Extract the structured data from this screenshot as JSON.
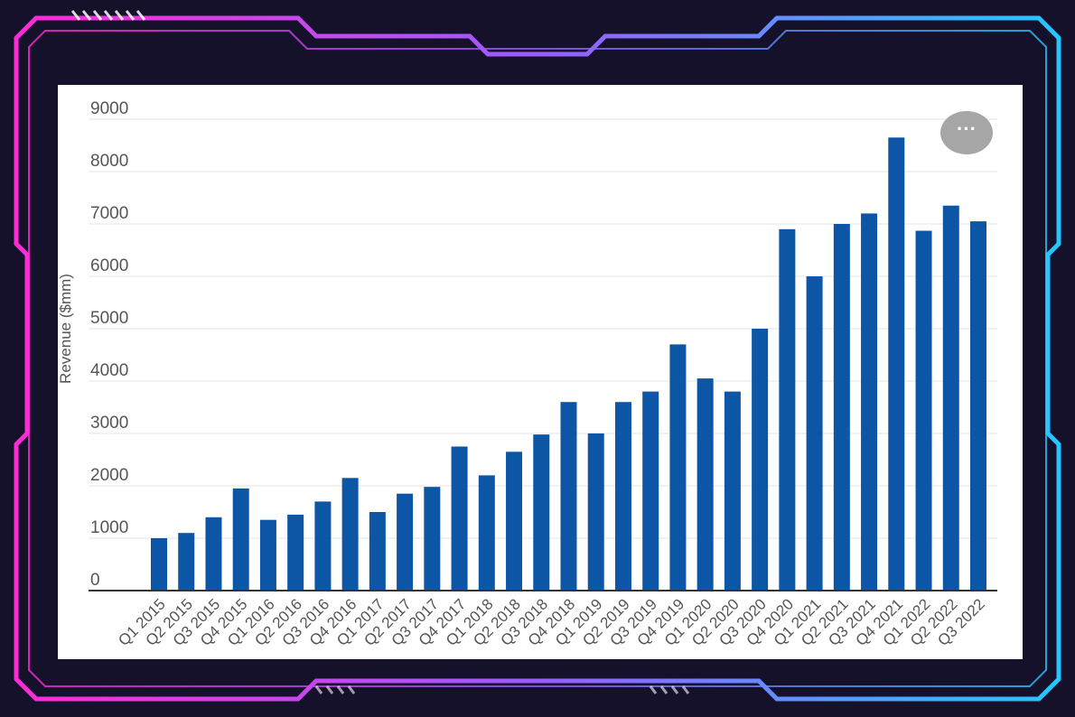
{
  "colors": {
    "bar": "#0d56a6",
    "frame_left": "#ff2bd6",
    "frame_right": "#25c6ff",
    "background": "#15112b",
    "panel": "#ffffff",
    "menu_button": "#a6a6a6"
  },
  "menu_icon": "ellipsis-icon",
  "menu_label": "···",
  "chart_data": {
    "type": "bar",
    "title": "",
    "xlabel": "",
    "ylabel": "Revenue ($mm)",
    "ylim": [
      0,
      9000
    ],
    "yticks": [
      "0",
      "1000",
      "2000",
      "3000",
      "4000",
      "5000",
      "6000",
      "7000",
      "8000",
      "9000"
    ],
    "grid": true,
    "legend": "none",
    "categories": [
      "Q1 2015",
      "Q2 2015",
      "Q3 2015",
      "Q4 2015",
      "Q1 2016",
      "Q2 2016",
      "Q3 2016",
      "Q4 2016",
      "Q1 2017",
      "Q2 2017",
      "Q3 2017",
      "Q4 2017",
      "Q1 2018",
      "Q2 2018",
      "Q3 2018",
      "Q4 2018",
      "Q1 2019",
      "Q2 2019",
      "Q3 2019",
      "Q4 2019",
      "Q1 2020",
      "Q2 2020",
      "Q3 2020",
      "Q4 2020",
      "Q1 2021",
      "Q2 2021",
      "Q3 2021",
      "Q4 2021",
      "Q1 2022",
      "Q2 2022",
      "Q3 2022"
    ],
    "values": [
      1000,
      1100,
      1400,
      1950,
      1350,
      1450,
      1700,
      2150,
      1500,
      1850,
      1980,
      2750,
      2200,
      2650,
      2980,
      3600,
      3000,
      3600,
      3800,
      4700,
      4050,
      3800,
      5000,
      6900,
      6000,
      7000,
      7200,
      8650,
      6870,
      7350,
      7050
    ]
  }
}
